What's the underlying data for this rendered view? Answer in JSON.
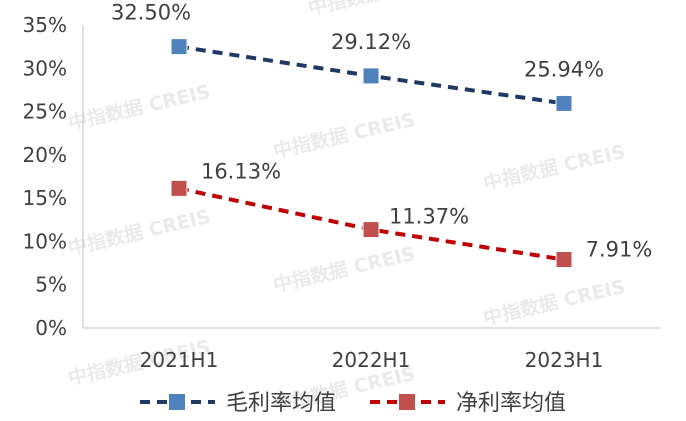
{
  "chart_data": {
    "type": "line",
    "categories": [
      "2021H1",
      "2022H1",
      "2023H1"
    ],
    "series": [
      {
        "name": "毛利率均值",
        "values": [
          32.5,
          29.12,
          25.94
        ],
        "labels": [
          "32.50%",
          "29.12%",
          "25.94%"
        ],
        "color": "#1f3864",
        "marker_color": "#4f81bd"
      },
      {
        "name": "净利率均值",
        "values": [
          16.13,
          11.37,
          7.91
        ],
        "labels": [
          "16.13%",
          "11.37%",
          "7.91%"
        ],
        "color": "#c00000",
        "marker_color": "#c0504d"
      }
    ],
    "y_ticks": [
      "0%",
      "5%",
      "10%",
      "15%",
      "20%",
      "25%",
      "30%",
      "35%"
    ],
    "ylim": [
      0,
      35
    ],
    "grid": false,
    "legend": "bottom",
    "watermark": "中指数据 CREIS"
  }
}
